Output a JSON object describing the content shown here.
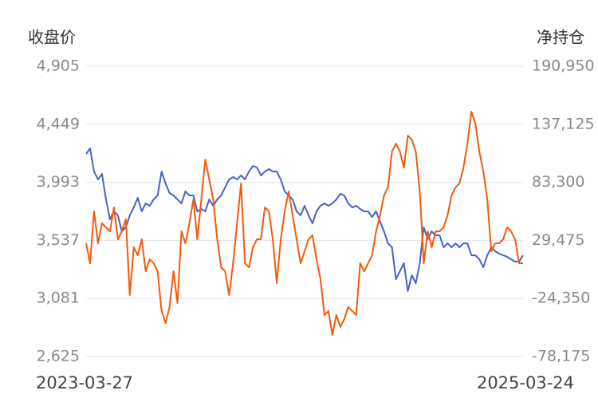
{
  "chart_data": {
    "type": "line",
    "ylabel": "收盘价",
    "y2label": "净持仓",
    "categories": [
      "2023-03-27",
      null,
      null,
      null,
      null,
      null,
      null,
      null,
      null,
      null,
      null,
      null,
      null,
      null,
      null,
      null,
      null,
      null,
      null,
      null,
      null,
      null,
      null,
      null,
      null,
      null,
      null,
      null,
      null,
      null,
      null,
      null,
      null,
      null,
      null,
      null,
      null,
      null,
      null,
      null,
      null,
      null,
      null,
      null,
      null,
      null,
      null,
      null,
      null,
      null,
      null,
      null,
      null,
      null,
      null,
      null,
      null,
      null,
      null,
      null,
      null,
      null,
      null,
      null,
      null,
      null,
      null,
      null,
      null,
      null,
      null,
      null,
      null,
      null,
      null,
      null,
      null,
      null,
      null,
      null,
      null,
      null,
      null,
      null,
      null,
      null,
      null,
      null,
      null,
      null,
      null,
      null,
      null,
      null,
      null,
      null,
      null,
      null,
      null,
      null,
      null,
      null,
      null,
      null,
      null,
      null,
      null,
      null,
      null,
      null,
      "2025-03-24"
    ],
    "series": [
      {
        "color": "#4a62c4",
        "values": [
          4216,
          4260,
          4078,
          4016,
          4059,
          3859,
          3702,
          3765,
          3734,
          3608,
          3640,
          3734,
          3796,
          3871,
          3765,
          3828,
          3809,
          3859,
          3890,
          4078,
          3984,
          3909,
          3890,
          3859,
          3828,
          3922,
          3890,
          3890,
          3765,
          3784,
          3765,
          3859,
          3809,
          3859,
          3890,
          3953,
          4016,
          4034,
          4016,
          4047,
          4016,
          4078,
          4122,
          4109,
          4047,
          4078,
          4097,
          4078,
          4078,
          4016,
          3922,
          3890,
          3859,
          3765,
          3734,
          3809,
          3734,
          3671,
          3765,
          3809,
          3828,
          3809,
          3828,
          3859,
          3903,
          3890,
          3828,
          3796,
          3809,
          3784,
          3765,
          3765,
          3721,
          3765,
          3684,
          3608,
          3514,
          3483,
          3232,
          3295,
          3358,
          3139,
          3264,
          3201,
          3358,
          3640,
          3546,
          3608,
          3577,
          3577,
          3483,
          3514,
          3483,
          3514,
          3483,
          3514,
          3514,
          3420,
          3420,
          3389,
          3326,
          3420,
          3483,
          3452,
          3433,
          3420,
          3408,
          3389,
          3370,
          3370,
          3420
        ]
      },
      {
        "color": "#f45a0a",
        "axis": "y2",
        "values": [
          26800,
          8300,
          56400,
          26800,
          45300,
          41600,
          37900,
          60100,
          30500,
          37900,
          49000,
          -21200,
          23100,
          15700,
          30500,
          900,
          12000,
          8300,
          900,
          -36000,
          -47100,
          -32300,
          900,
          -28700,
          37900,
          26800,
          45300,
          67500,
          30500,
          67500,
          104400,
          86000,
          67500,
          30500,
          4600,
          900,
          -21200,
          8300,
          45300,
          82300,
          8300,
          4600,
          23100,
          30500,
          30500,
          60100,
          56400,
          30500,
          -10200,
          30500,
          56400,
          74900,
          52700,
          30500,
          8300,
          19400,
          30500,
          34200,
          12000,
          -6500,
          -39700,
          -36000,
          -58200,
          -39700,
          -50800,
          -43400,
          -32300,
          -36000,
          -39700,
          8300,
          900,
          8300,
          15700,
          37900,
          52700,
          71200,
          78600,
          111800,
          119200,
          111800,
          97000,
          126600,
          122900,
          111800,
          74900,
          8300,
          37900,
          23100,
          37900,
          37900,
          41600,
          52700,
          71200,
          78600,
          82300,
          97000,
          119200,
          148800,
          137700,
          111800,
          93300,
          67500,
          19400,
          26800,
          26800,
          30500,
          41600,
          37900,
          30500,
          8300,
          8300
        ]
      }
    ],
    "ylim": [
      2625,
      4905
    ],
    "yticks": [
      {
        "value": 2625,
        "label": "2,625"
      },
      {
        "value": 3081,
        "label": "3,081"
      },
      {
        "value": 3537,
        "label": "3,537"
      },
      {
        "value": 3993,
        "label": "3,993"
      },
      {
        "value": 4449,
        "label": "4,449"
      },
      {
        "value": 4905,
        "label": "4,905"
      }
    ],
    "y2lim": [
      -78175,
      190950
    ],
    "y2ticks": [
      {
        "value": -78175,
        "label": "-78,175"
      },
      {
        "value": -24350,
        "label": "-24,350"
      },
      {
        "value": 29475,
        "label": "29,475"
      },
      {
        "value": 83300,
        "label": "83,300"
      },
      {
        "value": 137125,
        "label": "137,125"
      },
      {
        "value": 190950,
        "label": "190,950"
      }
    ],
    "grid": true
  }
}
